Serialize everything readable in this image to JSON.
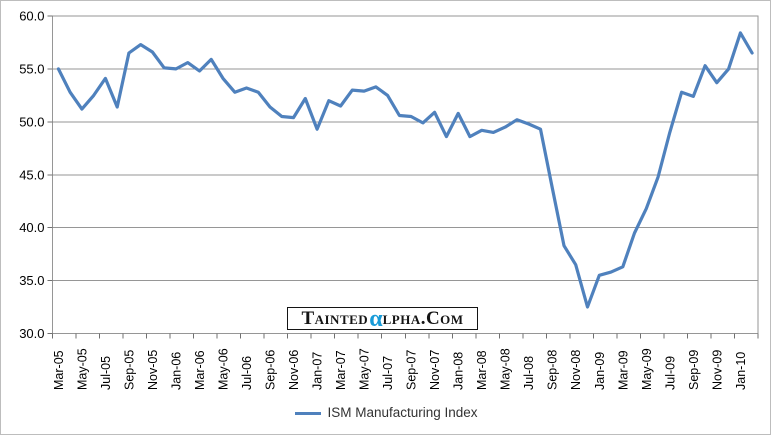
{
  "chart_data": {
    "type": "line",
    "title": "",
    "categories": [
      "Mar-05",
      "Apr-05",
      "May-05",
      "Jun-05",
      "Jul-05",
      "Aug-05",
      "Sep-05",
      "Oct-05",
      "Nov-05",
      "Dec-05",
      "Jan-06",
      "Feb-06",
      "Mar-06",
      "Apr-06",
      "May-06",
      "Jun-06",
      "Jul-06",
      "Aug-06",
      "Sep-06",
      "Oct-06",
      "Nov-06",
      "Dec-06",
      "Jan-07",
      "Feb-07",
      "Mar-07",
      "Apr-07",
      "May-07",
      "Jun-07",
      "Jul-07",
      "Aug-07",
      "Sep-07",
      "Oct-07",
      "Nov-07",
      "Dec-07",
      "Jan-08",
      "Feb-08",
      "Mar-08",
      "Apr-08",
      "May-08",
      "Jun-08",
      "Jul-08",
      "Aug-08",
      "Sep-08",
      "Oct-08",
      "Nov-08",
      "Dec-08",
      "Jan-09",
      "Feb-09",
      "Mar-09",
      "Apr-09",
      "May-09",
      "Jun-09",
      "Jul-09",
      "Aug-09",
      "Sep-09",
      "Oct-09",
      "Nov-09",
      "Dec-09",
      "Jan-10",
      "Feb-10"
    ],
    "series": [
      {
        "name": "ISM Manufacturing Index",
        "color": "#4F81BD",
        "values": [
          55.0,
          52.8,
          51.2,
          52.5,
          54.1,
          51.4,
          56.5,
          57.3,
          56.6,
          55.1,
          55.0,
          55.6,
          54.8,
          55.9,
          54.1,
          52.8,
          53.2,
          52.8,
          51.4,
          50.5,
          50.4,
          52.2,
          49.3,
          52.0,
          51.5,
          53.0,
          52.9,
          53.3,
          52.5,
          50.6,
          50.5,
          49.9,
          50.9,
          48.6,
          50.8,
          48.6,
          49.2,
          49.0,
          49.5,
          50.2,
          49.8,
          49.3,
          43.8,
          38.3,
          36.5,
          32.5,
          35.5,
          35.8,
          36.3,
          39.5,
          41.8,
          44.8,
          49.0,
          52.8,
          52.4,
          55.3,
          53.7,
          55.0,
          58.4,
          56.5
        ]
      }
    ],
    "x_tick_labels": [
      "Mar-05",
      "May-05",
      "Jul-05",
      "Sep-05",
      "Nov-05",
      "Jan-06",
      "Mar-06",
      "May-06",
      "Jul-06",
      "Sep-06",
      "Nov-06",
      "Jan-07",
      "Mar-07",
      "May-07",
      "Jul-07",
      "Sep-07",
      "Nov-07",
      "Jan-08",
      "Mar-08",
      "May-08",
      "Jul-08",
      "Sep-08",
      "Nov-08",
      "Jan-09",
      "Mar-09",
      "May-09",
      "Jul-09",
      "Sep-09",
      "Nov-09",
      "Jan-10"
    ],
    "x_label_interval": 2,
    "y_tick_labels": [
      "60.0",
      "55.0",
      "50.0",
      "45.0",
      "40.0",
      "35.0",
      "30.0"
    ],
    "ylim": [
      30,
      60
    ],
    "y_tick_step": 5,
    "grid": true,
    "legend_position": "bottom"
  },
  "legend": {
    "label": "ISM Manufacturing Index"
  },
  "watermark": {
    "part1": "Tainted",
    "alpha": "α",
    "part2": "lpha.Com",
    "alpha_color": "#189BD8",
    "text_color": "#141414"
  },
  "colors": {
    "line": "#4F81BD",
    "grid": "#969696",
    "axis": "#707070",
    "label": "#000000",
    "legend_text": "#333333",
    "background": "#FFFFFF",
    "chart_border": "#BDBDBD"
  }
}
